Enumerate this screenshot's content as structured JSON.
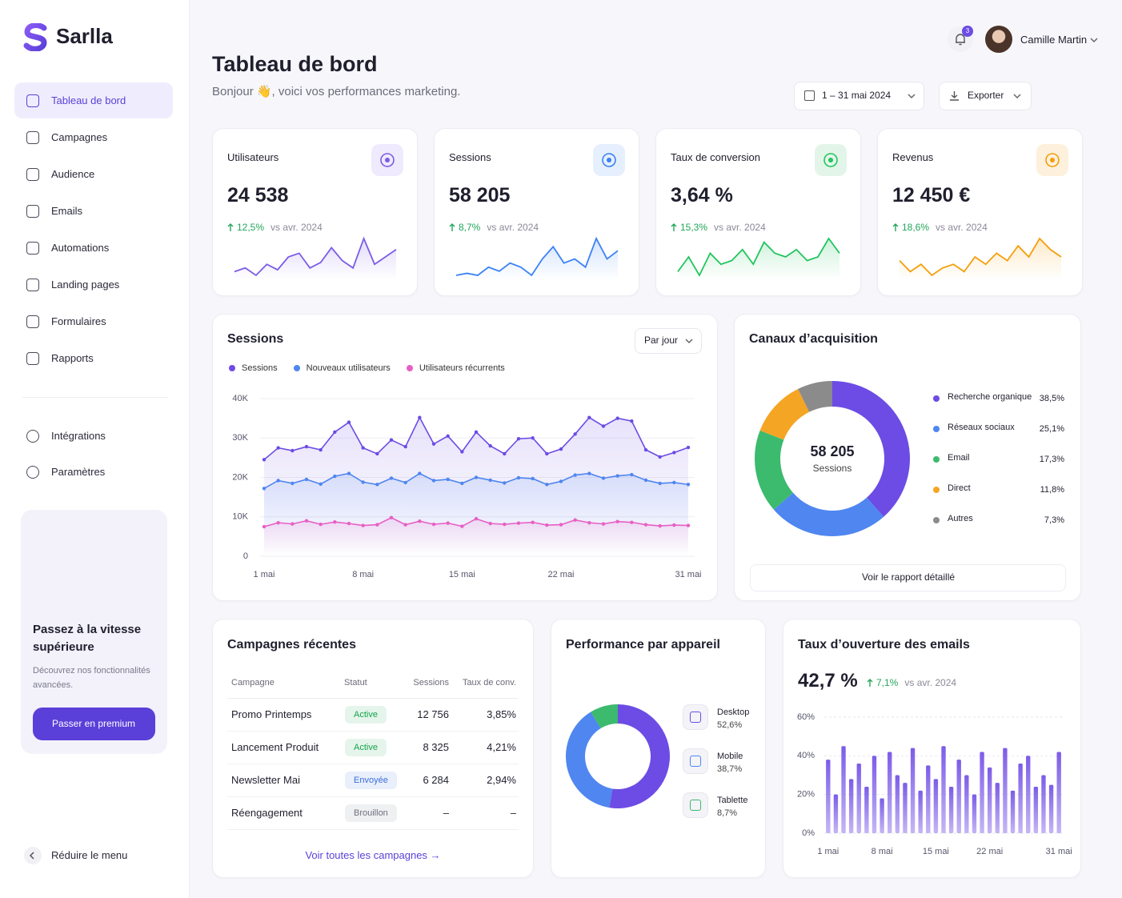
{
  "sidebar": {
    "brand": "Sarlla",
    "nav": [
      "Tableau de bord",
      "Campagnes",
      "Audience",
      "Emails",
      "Automations",
      "Landing pages",
      "Formulaires",
      "Rapports"
    ],
    "nav_secondary": [
      "Intégrations",
      "Paramètres"
    ],
    "promo": {
      "title": "Passez à la vitesse supérieure",
      "text": "Découvrez nos fonctionnalités avancées.",
      "button": "Passer en premium"
    },
    "collapse": "Réduire le menu"
  },
  "header": {
    "title": "Tableau de bord",
    "subtitle": "Bonjour 👋, voici vos performances marketing.",
    "notifications": "3",
    "user": "Camille Martin",
    "date_range": "1 – 31 mai 2024",
    "export": "Exporter"
  },
  "kpis": [
    {
      "label": "Utilisateurs",
      "value": "24 538",
      "change": "12,5%",
      "compare": "vs avr. 2024",
      "color": "#7c5ce8",
      "icon_bg": "#efeafd",
      "sparkline": [
        20,
        22,
        18,
        24,
        21,
        28,
        30,
        22,
        25,
        33,
        26,
        22,
        38,
        24,
        28,
        32
      ]
    },
    {
      "label": "Sessions",
      "value": "58 205",
      "change": "8,7%",
      "compare": "vs avr. 2024",
      "color": "#3b82f6",
      "icon_bg": "#e6effd",
      "sparkline": [
        18,
        19,
        18,
        22,
        20,
        24,
        22,
        18,
        26,
        32,
        24,
        26,
        22,
        36,
        26,
        30
      ]
    },
    {
      "label": "Taux de conversion",
      "value": "3,64 %",
      "change": "15,3%",
      "compare": "vs avr. 2024",
      "color": "#22c55e",
      "icon_bg": "#e3f5e9",
      "sparkline": [
        20,
        28,
        18,
        30,
        24,
        26,
        32,
        24,
        36,
        30,
        28,
        32,
        26,
        28,
        38,
        30
      ]
    },
    {
      "label": "Revenus",
      "value": "12 450 €",
      "change": "18,6%",
      "compare": "vs avr. 2024",
      "color": "#f59e0b",
      "icon_bg": "#fdf0dc",
      "sparkline": [
        28,
        22,
        26,
        20,
        24,
        26,
        22,
        30,
        26,
        32,
        28,
        36,
        30,
        40,
        34,
        30
      ]
    }
  ],
  "chart_data": [
    {
      "type": "line",
      "title": "Sessions",
      "control": "Par jour",
      "categories": [
        "1 mai",
        null,
        null,
        null,
        null,
        null,
        null,
        "8 mai",
        null,
        null,
        null,
        null,
        null,
        null,
        "15 mai",
        null,
        null,
        null,
        null,
        null,
        null,
        "22 mai",
        null,
        null,
        null,
        null,
        null,
        null,
        null,
        null,
        "31 mai"
      ],
      "series": [
        {
          "name": "Sessions",
          "color": "#6c4ce4",
          "values": [
            24500,
            27500,
            26800,
            27800,
            27000,
            31500,
            34000,
            27500,
            26000,
            29500,
            27800,
            35200,
            28500,
            30500,
            26500,
            31500,
            28000,
            26000,
            29800,
            30000,
            26000,
            27200,
            31000,
            35200,
            33000,
            35000,
            34300,
            27000,
            25200,
            26300,
            27600
          ]
        },
        {
          "name": "Nouveaux utilisateurs",
          "color": "#4f86f0",
          "values": [
            17200,
            19200,
            18500,
            19500,
            18300,
            20300,
            21000,
            18800,
            18200,
            19800,
            18700,
            21000,
            19200,
            19500,
            18500,
            20000,
            19300,
            18600,
            19900,
            19700,
            18200,
            19000,
            20600,
            21000,
            19800,
            20400,
            20700,
            19300,
            18500,
            18700,
            18200
          ]
        },
        {
          "name": "Utilisateurs récurrents",
          "color": "#e85fc4",
          "values": [
            7500,
            8500,
            8200,
            9000,
            8100,
            8700,
            8300,
            7800,
            8000,
            9800,
            8000,
            8900,
            8100,
            8400,
            7600,
            9500,
            8300,
            8100,
            8400,
            8600,
            7900,
            8000,
            9200,
            8500,
            8200,
            8800,
            8600,
            8000,
            7700,
            7900,
            7800
          ]
        }
      ],
      "ylim": [
        0,
        40000
      ],
      "yticks": [
        0,
        {
          "value": 10000,
          "label": "10K"
        },
        {
          "value": 20000,
          "label": "20K"
        },
        {
          "value": 30000,
          "label": "30K"
        },
        {
          "value": 40000,
          "label": "40K"
        }
      ],
      "grid": true
    },
    {
      "type": "donut",
      "title": "Canaux d’acquisition",
      "center_value": "58 205",
      "center_label": "Sessions",
      "categories": [
        "Recherche organique",
        "Réseaux sociaux",
        "Email",
        "Direct",
        "Autres"
      ],
      "values": [
        38.5,
        25.1,
        17.3,
        11.8,
        7.3
      ],
      "value_labels": [
        "38,5%",
        "25,1%",
        "17,3%",
        "11,8%",
        "7,3%"
      ],
      "colors": [
        "#6c4ce4",
        "#4f86f0",
        "#3cba6e",
        "#f5a524",
        "#8b8b8b"
      ],
      "button": "Voir le rapport détaillé"
    },
    {
      "type": "donut",
      "title": "Performance par appareil",
      "categories": [
        "Desktop",
        "Mobile",
        "Tablette"
      ],
      "values": [
        52.6,
        38.7,
        8.7
      ],
      "value_labels": [
        "52,6%",
        "38,7%",
        "8,7%"
      ],
      "colors": [
        "#6c4ce4",
        "#4f86f0",
        "#3cba6e"
      ]
    },
    {
      "type": "bar",
      "title": "Taux d’ouverture des emails",
      "headline": "42,7 %",
      "change": "7,1%",
      "compare": "vs avr. 2024",
      "categories": [
        "1 mai",
        null,
        null,
        null,
        null,
        null,
        null,
        "8 mai",
        null,
        null,
        null,
        null,
        null,
        null,
        "15 mai",
        null,
        null,
        null,
        null,
        null,
        null,
        "22 mai",
        null,
        null,
        null,
        null,
        null,
        null,
        null,
        null,
        "31 mai"
      ],
      "values": [
        38,
        20,
        45,
        28,
        36,
        24,
        40,
        18,
        42,
        30,
        26,
        44,
        22,
        35,
        28,
        45,
        24,
        38,
        30,
        20,
        42,
        34,
        26,
        44,
        22,
        36,
        40,
        24,
        30,
        25,
        42
      ],
      "color": "#7c5ce8",
      "ylim": [
        0,
        60
      ],
      "yticks": [
        {
          "value": 0,
          "label": "0%"
        },
        {
          "value": 20,
          "label": "20%"
        },
        {
          "value": 40,
          "label": "40%"
        },
        {
          "value": 60,
          "label": "60%"
        }
      ],
      "grid": true
    }
  ],
  "campaigns": {
    "title": "Campagnes récentes",
    "columns": [
      "Campagne",
      "Statut",
      "Sessions",
      "Taux de conv."
    ],
    "rows": [
      {
        "campaign": "Promo Printemps",
        "status": "Active",
        "status_color": "#16a34a",
        "sessions": "12 756",
        "rate": "3,85%"
      },
      {
        "campaign": "Lancement Produit",
        "status": "Active",
        "status_color": "#16a34a",
        "sessions": "8 325",
        "rate": "4,21%"
      },
      {
        "campaign": "Newsletter Mai",
        "status": "Envoyée",
        "status_color": "#3b6fd9",
        "sessions": "6 284",
        "rate": "2,94%"
      },
      {
        "campaign": "Réengagement",
        "status": "Brouillon",
        "status_color": "#6b7280",
        "sessions": "–",
        "rate": "–"
      }
    ],
    "link": "Voir toutes les campagnes →"
  }
}
